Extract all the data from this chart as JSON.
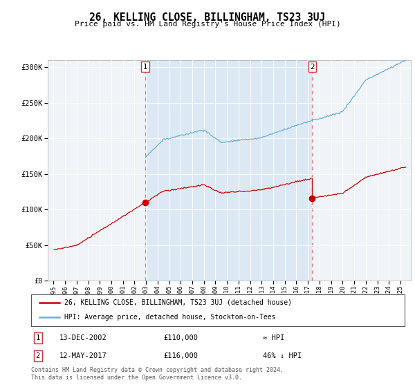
{
  "title": "26, KELLING CLOSE, BILLINGHAM, TS23 3UJ",
  "subtitle": "Price paid vs. HM Land Registry's House Price Index (HPI)",
  "legend_line1": "26, KELLING CLOSE, BILLINGHAM, TS23 3UJ (detached house)",
  "legend_line2": "HPI: Average price, detached house, Stockton-on-Tees",
  "footer1": "Contains HM Land Registry data © Crown copyright and database right 2024.",
  "footer2": "This data is licensed under the Open Government Licence v3.0.",
  "sale1_date": "13-DEC-2002",
  "sale1_price": "£110,000",
  "sale1_rel": "≈ HPI",
  "sale2_date": "12-MAY-2017",
  "sale2_price": "£116,000",
  "sale2_rel": "46% ↓ HPI",
  "hpi_color": "#6baed6",
  "price_color": "#cc0000",
  "marker_color": "#cc0000",
  "dashed_color": "#e57373",
  "shade_color": "#dce9f5",
  "ylim_min": 0,
  "ylim_max": 310000,
  "yticks": [
    0,
    50000,
    100000,
    150000,
    200000,
    250000,
    300000
  ],
  "ytick_labels": [
    "£0",
    "£50K",
    "£100K",
    "£150K",
    "£200K",
    "£250K",
    "£300K"
  ],
  "bg_color": "#f0f4f8",
  "plot_bg": "#e8eef5",
  "sale1_t": 2002.958,
  "sale2_t": 2017.375,
  "sale1_price_val": 110000,
  "sale2_price_val": 116000
}
